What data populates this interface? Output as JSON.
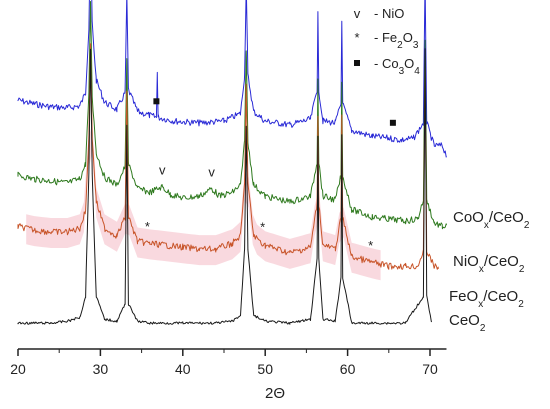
{
  "chart_data": {
    "type": "line",
    "xlabel": "2Θ",
    "xlim": [
      20,
      72
    ],
    "x_ticks": [
      20,
      30,
      40,
      50,
      60,
      70
    ],
    "grid": false,
    "colors": {
      "CoOx/CeO2": "#2a2ad6",
      "NiOx/CeO2": "#2f7a1f",
      "FeOx/CeO2": "#c8552a",
      "CeO2": "#1a1a1a",
      "highlight": "#f6c9d2"
    },
    "series": [
      {
        "key": "CoOx/CeO2",
        "label_parts": [
          [
            "CoO",
            ""
          ],
          [
            "x",
            "sub"
          ],
          [
            "/CeO",
            ""
          ],
          [
            "2",
            "sub"
          ]
        ],
        "color": "#2a2ad6",
        "baseline": 62,
        "points": [
          [
            20,
            84
          ],
          [
            22,
            80
          ],
          [
            24,
            77
          ],
          [
            26,
            76
          ],
          [
            27.5,
            78
          ],
          [
            28.2,
            92
          ],
          [
            28.6,
            160
          ],
          [
            28.8,
            260
          ],
          [
            29.0,
            165
          ],
          [
            29.5,
            105
          ],
          [
            30.5,
            82
          ],
          [
            32,
            74
          ],
          [
            33,
            92
          ],
          [
            33.2,
            195
          ],
          [
            33.4,
            95
          ],
          [
            34.5,
            72
          ],
          [
            36,
            68
          ],
          [
            36.8,
            66
          ],
          [
            36.9,
            116
          ],
          [
            37.0,
            66
          ],
          [
            39,
            62
          ],
          [
            42,
            60
          ],
          [
            45,
            62
          ],
          [
            47,
            70
          ],
          [
            47.5,
            110
          ],
          [
            47.7,
            205
          ],
          [
            47.9,
            110
          ],
          [
            48.6,
            72
          ],
          [
            50,
            62
          ],
          [
            53,
            58
          ],
          [
            55.5,
            64
          ],
          [
            56.3,
            95
          ],
          [
            56.4,
            175
          ],
          [
            56.5,
            95
          ],
          [
            57,
            62
          ],
          [
            58.5,
            60
          ],
          [
            59.2,
            80
          ],
          [
            59.3,
            170
          ],
          [
            59.4,
            80
          ],
          [
            60.5,
            52
          ],
          [
            63,
            46
          ],
          [
            65,
            44
          ],
          [
            66.5,
            42
          ],
          [
            68,
            44
          ],
          [
            69.2,
            60
          ],
          [
            69.4,
            210
          ],
          [
            69.6,
            60
          ],
          [
            70.5,
            36
          ],
          [
            71.5,
            36
          ],
          [
            72,
            26
          ]
        ]
      },
      {
        "key": "NiOx/CeO2",
        "label_parts": [
          [
            "NiO",
            ""
          ],
          [
            "x",
            "sub"
          ],
          [
            "/CeO",
            ""
          ],
          [
            "2",
            "sub"
          ]
        ],
        "color": "#2f7a1f",
        "baseline": 42,
        "points": [
          [
            20,
            66
          ],
          [
            22,
            62
          ],
          [
            24,
            60
          ],
          [
            26,
            58
          ],
          [
            27.5,
            62
          ],
          [
            28.2,
            78
          ],
          [
            28.6,
            150
          ],
          [
            28.8,
            250
          ],
          [
            29.0,
            150
          ],
          [
            29.5,
            90
          ],
          [
            30.5,
            64
          ],
          [
            32,
            56
          ],
          [
            33,
            75
          ],
          [
            33.2,
            190
          ],
          [
            33.4,
            78
          ],
          [
            34.5,
            52
          ],
          [
            36,
            48
          ],
          [
            37.5,
            54
          ],
          [
            38.5,
            46
          ],
          [
            40,
            42
          ],
          [
            42,
            44
          ],
          [
            43.5,
            52
          ],
          [
            44.5,
            44
          ],
          [
            46,
            48
          ],
          [
            47,
            56
          ],
          [
            47.5,
            100
          ],
          [
            47.7,
            200
          ],
          [
            47.9,
            100
          ],
          [
            48.6,
            56
          ],
          [
            50,
            44
          ],
          [
            53,
            38
          ],
          [
            55.5,
            44
          ],
          [
            56.3,
            80
          ],
          [
            56.4,
            170
          ],
          [
            56.5,
            80
          ],
          [
            57,
            44
          ],
          [
            58.5,
            40
          ],
          [
            59.2,
            65
          ],
          [
            59.3,
            165
          ],
          [
            59.4,
            65
          ],
          [
            60.5,
            30
          ],
          [
            63,
            22
          ],
          [
            65,
            20
          ],
          [
            67,
            18
          ],
          [
            68.5,
            20
          ],
          [
            69.2,
            40
          ],
          [
            69.4,
            210
          ],
          [
            69.6,
            40
          ],
          [
            70.5,
            16
          ],
          [
            71.5,
            12
          ],
          [
            72,
            12
          ]
        ]
      },
      {
        "key": "FeOx/CeO2",
        "label_parts": [
          [
            "FeO",
            ""
          ],
          [
            "x",
            "sub"
          ],
          [
            "/CeO",
            ""
          ],
          [
            "2",
            "sub"
          ]
        ],
        "color": "#c8552a",
        "baseline": 26,
        "points": [
          [
            20,
            46
          ],
          [
            22,
            42
          ],
          [
            24,
            40
          ],
          [
            26,
            40
          ],
          [
            27.5,
            44
          ],
          [
            28.2,
            62
          ],
          [
            28.6,
            140
          ],
          [
            28.8,
            240
          ],
          [
            29.0,
            140
          ],
          [
            29.5,
            72
          ],
          [
            30.5,
            44
          ],
          [
            32,
            36
          ],
          [
            33,
            55
          ],
          [
            33.2,
            185
          ],
          [
            33.4,
            56
          ],
          [
            34.5,
            30
          ],
          [
            36,
            28
          ],
          [
            38,
            26
          ],
          [
            40,
            24
          ],
          [
            42,
            22
          ],
          [
            44,
            22
          ],
          [
            46,
            28
          ],
          [
            47,
            36
          ],
          [
            47.5,
            90
          ],
          [
            47.7,
            195
          ],
          [
            47.9,
            90
          ],
          [
            48.6,
            36
          ],
          [
            50,
            26
          ],
          [
            53,
            18
          ],
          [
            55.5,
            24
          ],
          [
            56.3,
            70
          ],
          [
            56.4,
            165
          ],
          [
            56.5,
            70
          ],
          [
            57,
            26
          ],
          [
            58.5,
            22
          ],
          [
            59.2,
            55
          ],
          [
            59.3,
            160
          ],
          [
            59.4,
            55
          ],
          [
            60.5,
            14
          ],
          [
            63,
            8
          ],
          [
            65,
            4
          ],
          [
            67,
            4
          ],
          [
            68.5,
            4
          ],
          [
            69.2,
            20
          ],
          [
            69.4,
            210
          ],
          [
            69.6,
            20
          ],
          [
            70.5,
            4
          ],
          [
            71,
            2
          ]
        ]
      },
      {
        "key": "CeO2",
        "label_parts": [
          [
            "CeO",
            ""
          ],
          [
            "2",
            "sub"
          ]
        ],
        "color": "#1a1a1a",
        "baseline": 0,
        "points": [
          [
            20,
            2
          ],
          [
            22,
            2
          ],
          [
            24,
            2
          ],
          [
            26,
            4
          ],
          [
            27.5,
            8
          ],
          [
            28.2,
            30
          ],
          [
            28.6,
            160
          ],
          [
            28.8,
            290
          ],
          [
            29.0,
            160
          ],
          [
            29.5,
            30
          ],
          [
            30.5,
            6
          ],
          [
            32,
            4
          ],
          [
            33,
            22
          ],
          [
            33.2,
            210
          ],
          [
            33.4,
            22
          ],
          [
            34.5,
            4
          ],
          [
            36,
            2
          ],
          [
            40,
            2
          ],
          [
            44,
            2
          ],
          [
            46,
            4
          ],
          [
            47,
            10
          ],
          [
            47.5,
            80
          ],
          [
            47.7,
            210
          ],
          [
            47.9,
            80
          ],
          [
            48.6,
            10
          ],
          [
            50,
            4
          ],
          [
            53,
            2
          ],
          [
            55.5,
            6
          ],
          [
            56.3,
            70
          ],
          [
            56.4,
            200
          ],
          [
            56.5,
            70
          ],
          [
            57,
            6
          ],
          [
            58.5,
            4
          ],
          [
            59.2,
            50
          ],
          [
            59.3,
            200
          ],
          [
            59.4,
            50
          ],
          [
            60.5,
            2
          ],
          [
            63,
            2
          ],
          [
            67,
            2
          ],
          [
            69.2,
            30
          ],
          [
            69.4,
            290
          ],
          [
            69.6,
            30
          ],
          [
            70.2,
            2
          ]
        ]
      }
    ],
    "legend": [
      {
        "symbol": "v",
        "symbol_key": "v-symbol",
        "parts": [
          [
            "- NiO",
            ""
          ]
        ]
      },
      {
        "symbol": "*",
        "symbol_key": "asterisk-symbol",
        "parts": [
          [
            "- Fe",
            ""
          ],
          [
            "2",
            "sub"
          ],
          [
            "O",
            ""
          ],
          [
            "3",
            "sub"
          ]
        ]
      },
      {
        "symbol": "■",
        "symbol_key": "square-symbol",
        "parts": [
          [
            "- Co",
            ""
          ],
          [
            "3",
            "sub"
          ],
          [
            "O",
            ""
          ],
          [
            "4",
            "sub"
          ]
        ]
      }
    ],
    "annotations": [
      {
        "series": "CoOx/CeO2",
        "x": 36.8,
        "symbol": "■",
        "symbol_key": "square-symbol"
      },
      {
        "series": "CoOx/CeO2",
        "x": 65.5,
        "symbol": "■",
        "symbol_key": "square-symbol"
      },
      {
        "series": "NiOx/CeO2",
        "x": 37.5,
        "symbol": "v",
        "symbol_key": "v-symbol"
      },
      {
        "series": "NiOx/CeO2",
        "x": 43.5,
        "symbol": "v",
        "symbol_key": "v-symbol"
      },
      {
        "series": "FeOx/CeO2",
        "x": 35.7,
        "symbol": "*",
        "symbol_key": "asterisk-symbol"
      },
      {
        "series": "FeOx/CeO2",
        "x": 49.7,
        "symbol": "*",
        "symbol_key": "asterisk-symbol"
      },
      {
        "series": "FeOx/CeO2",
        "x": 62.8,
        "symbol": "*",
        "symbol_key": "asterisk-symbol"
      }
    ]
  }
}
